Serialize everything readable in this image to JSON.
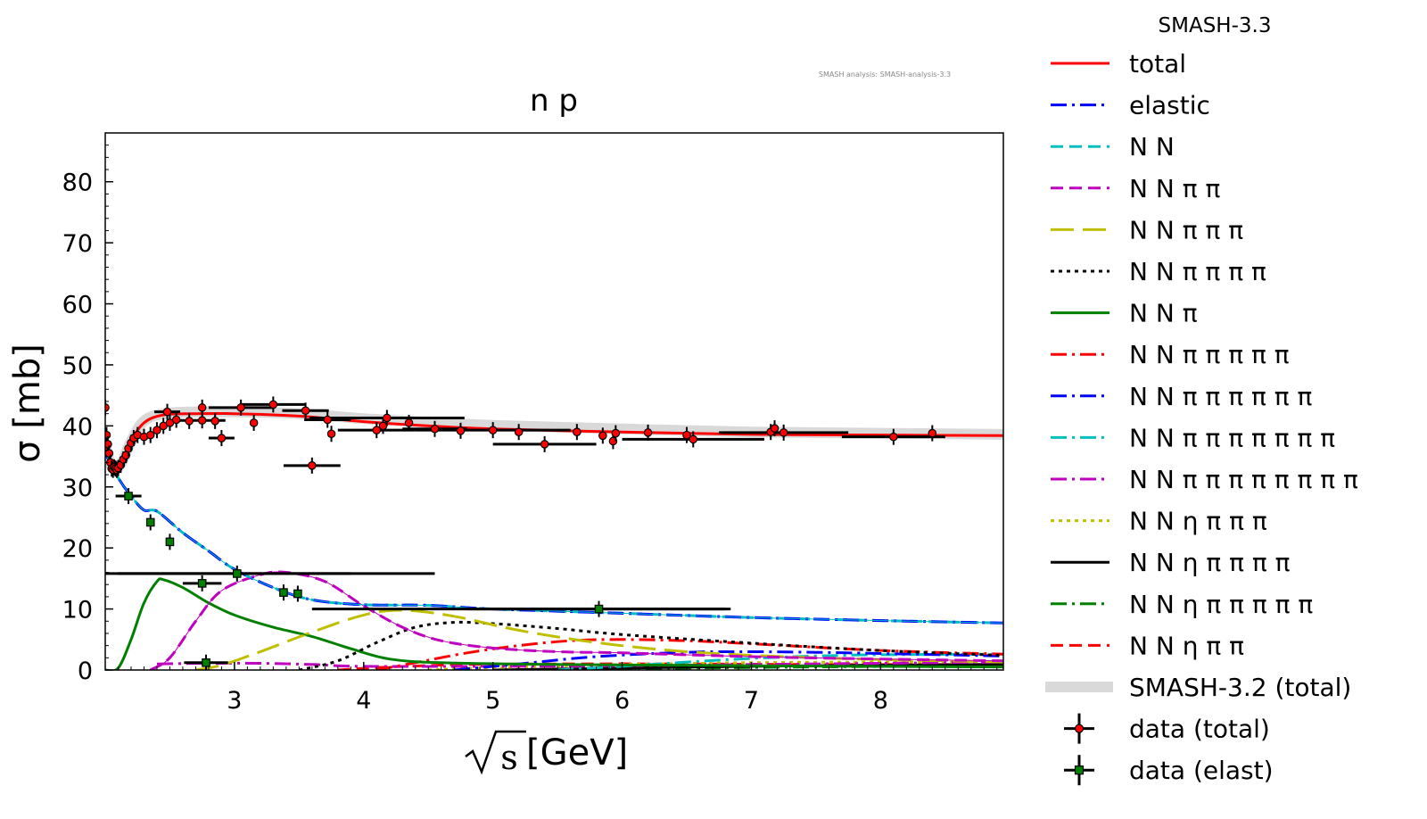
{
  "header": {
    "version_label": "SMASH-3.3",
    "analysis_note": "SMASH analysis: SMASH-analysis-3.3"
  },
  "chart_data": {
    "type": "line",
    "title": "n p",
    "xlabel": "[GeV]",
    "xlabel_symbol": "s",
    "ylabel": "σ [mb]",
    "xlim": [
      2.0,
      8.95
    ],
    "ylim": [
      0,
      88
    ],
    "x_ticks": [
      3,
      4,
      5,
      6,
      7,
      8
    ],
    "y_ticks": [
      0,
      10,
      20,
      30,
      40,
      50,
      60,
      70,
      80
    ],
    "grid": false,
    "legend_position": "outside-right",
    "series": [
      {
        "name": "total",
        "color": "#ff0000",
        "dash": "solid",
        "points": [
          [
            2.0,
            37
          ],
          [
            2.03,
            34.5
          ],
          [
            2.06,
            33
          ],
          [
            2.1,
            33.2
          ],
          [
            2.14,
            34.5
          ],
          [
            2.2,
            37.5
          ],
          [
            2.3,
            40.5
          ],
          [
            2.45,
            41.8
          ],
          [
            2.7,
            42
          ],
          [
            3.0,
            42
          ],
          [
            3.5,
            41.6
          ],
          [
            4.0,
            40.7
          ],
          [
            4.5,
            40
          ],
          [
            5.0,
            39.5
          ],
          [
            6.0,
            39
          ],
          [
            7.0,
            38.6
          ],
          [
            8.0,
            38.5
          ],
          [
            8.95,
            38.4
          ]
        ]
      },
      {
        "name": "elastic",
        "color": "#0000ff",
        "dash": "dashdot",
        "points": [
          [
            2.0,
            35.5
          ],
          [
            2.1,
            31.5
          ],
          [
            2.2,
            28.5
          ],
          [
            2.3,
            26.2
          ],
          [
            2.4,
            26
          ],
          [
            2.6,
            22.5
          ],
          [
            2.8,
            19.5
          ],
          [
            3.0,
            16.5
          ],
          [
            3.3,
            13.5
          ],
          [
            3.6,
            11.5
          ],
          [
            4.0,
            10.7
          ],
          [
            4.5,
            10.6
          ],
          [
            5.0,
            10
          ],
          [
            6.0,
            9.3
          ],
          [
            7.0,
            8.6
          ],
          [
            8.0,
            8.1
          ],
          [
            8.95,
            7.7
          ]
        ]
      },
      {
        "name": "N N",
        "color": "#00bfbf",
        "dash": "dashed",
        "points": [
          [
            2.0,
            35.5
          ],
          [
            2.1,
            31.5
          ],
          [
            2.2,
            28.5
          ],
          [
            2.3,
            26.2
          ],
          [
            2.4,
            26
          ],
          [
            2.6,
            22.5
          ],
          [
            2.8,
            19.5
          ],
          [
            3.0,
            16.5
          ],
          [
            3.3,
            13.5
          ],
          [
            3.6,
            11.5
          ],
          [
            4.0,
            10.7
          ],
          [
            4.5,
            10.6
          ],
          [
            5.0,
            10
          ],
          [
            6.0,
            9.3
          ],
          [
            7.0,
            8.6
          ],
          [
            8.0,
            8.1
          ],
          [
            8.95,
            7.7
          ]
        ]
      },
      {
        "name": "N N π π",
        "color": "#bf00bf",
        "dash": "dashed",
        "points": [
          [
            2.35,
            0
          ],
          [
            2.5,
            2
          ],
          [
            2.7,
            8
          ],
          [
            2.9,
            13
          ],
          [
            3.2,
            15.6
          ],
          [
            3.4,
            16
          ],
          [
            3.7,
            14.5
          ],
          [
            4.0,
            10.5
          ],
          [
            4.3,
            7
          ],
          [
            4.6,
            4.8
          ],
          [
            5.0,
            3.6
          ],
          [
            5.5,
            3
          ],
          [
            6.0,
            2.8
          ],
          [
            7.0,
            2.2
          ],
          [
            8.0,
            1.8
          ],
          [
            8.95,
            1.5
          ]
        ]
      },
      {
        "name": "N N π π π",
        "color": "#bfbf00",
        "dash": "longdash",
        "points": [
          [
            2.7,
            0
          ],
          [
            2.9,
            0.8
          ],
          [
            3.2,
            3
          ],
          [
            3.6,
            6.2
          ],
          [
            4.0,
            9
          ],
          [
            4.3,
            9.8
          ],
          [
            4.7,
            8.8
          ],
          [
            5.2,
            6.5
          ],
          [
            5.8,
            4.5
          ],
          [
            6.5,
            3
          ],
          [
            7.5,
            2
          ],
          [
            8.95,
            1.3
          ]
        ]
      },
      {
        "name": "N N π π π π",
        "color": "#000000",
        "dash": "dotted",
        "points": [
          [
            3.5,
            0
          ],
          [
            3.8,
            1.5
          ],
          [
            4.1,
            4.5
          ],
          [
            4.4,
            7
          ],
          [
            4.7,
            7.8
          ],
          [
            5.0,
            7.6
          ],
          [
            5.5,
            6.8
          ],
          [
            6.0,
            5.8
          ],
          [
            7.0,
            4.4
          ],
          [
            8.0,
            3.2
          ],
          [
            8.95,
            2.4
          ]
        ]
      },
      {
        "name": "N N π",
        "color": "#008000",
        "dash": "solid",
        "points": [
          [
            2.0,
            0
          ],
          [
            2.1,
            0.3
          ],
          [
            2.2,
            5
          ],
          [
            2.3,
            11
          ],
          [
            2.4,
            14.5
          ],
          [
            2.45,
            14.8
          ],
          [
            2.6,
            13.5
          ],
          [
            2.8,
            11
          ],
          [
            3.0,
            9
          ],
          [
            3.3,
            7
          ],
          [
            3.6,
            5.5
          ],
          [
            3.9,
            3.5
          ],
          [
            4.2,
            1.8
          ],
          [
            4.6,
            1.2
          ],
          [
            5.5,
            0.9
          ],
          [
            7.0,
            0.7
          ],
          [
            8.95,
            0.5
          ]
        ]
      },
      {
        "name": "N N π π π π π",
        "color": "#ff0000",
        "dash": "dashdot",
        "points": [
          [
            4.1,
            0
          ],
          [
            4.4,
            1.2
          ],
          [
            4.8,
            2.8
          ],
          [
            5.2,
            4
          ],
          [
            5.6,
            4.8
          ],
          [
            6.0,
            5
          ],
          [
            6.5,
            4.8
          ],
          [
            7.0,
            4.3
          ],
          [
            8.0,
            3.2
          ],
          [
            8.95,
            2.6
          ]
        ]
      },
      {
        "name": "N N π π π π π π",
        "color": "#0000ff",
        "dash": "dashdot",
        "points": [
          [
            4.7,
            0
          ],
          [
            5.2,
            1
          ],
          [
            5.8,
            2.2
          ],
          [
            6.5,
            2.9
          ],
          [
            7.0,
            3
          ],
          [
            7.5,
            2.9
          ],
          [
            8.0,
            2.7
          ],
          [
            8.95,
            2.3
          ]
        ]
      },
      {
        "name": "N N π π π π π π π",
        "color": "#00bfbf",
        "dash": "dashdot",
        "points": [
          [
            5.5,
            0
          ],
          [
            6.0,
            0.6
          ],
          [
            6.5,
            1.3
          ],
          [
            7.0,
            1.9
          ],
          [
            7.5,
            2.3
          ],
          [
            8.0,
            2.5
          ],
          [
            8.95,
            2.6
          ]
        ]
      },
      {
        "name": "N N π π π π π π π π",
        "color": "#bf00bf",
        "dash": "dashdot",
        "points": [
          [
            2.4,
            1
          ],
          [
            2.8,
            1.1
          ],
          [
            3.2,
            1.1
          ],
          [
            3.6,
            0.9
          ],
          [
            4.0,
            0.6
          ],
          [
            5.0,
            0.6
          ],
          [
            6.0,
            0.7
          ],
          [
            7.0,
            0.9
          ],
          [
            8.0,
            1.1
          ],
          [
            8.95,
            1.3
          ]
        ]
      },
      {
        "name": "N N η π π π",
        "color": "#bfbf00",
        "dash": "dotted",
        "points": [
          [
            4.5,
            0
          ],
          [
            5.0,
            0.4
          ],
          [
            6.0,
            0.9
          ],
          [
            7.0,
            1.2
          ],
          [
            8.0,
            1.3
          ],
          [
            8.95,
            1.4
          ]
        ]
      },
      {
        "name": "N N η π π π π",
        "color": "#000000",
        "dash": "solid",
        "points": [
          [
            5.0,
            0
          ],
          [
            6.0,
            0.3
          ],
          [
            7.0,
            0.6
          ],
          [
            8.0,
            0.8
          ],
          [
            8.95,
            0.9
          ]
        ]
      },
      {
        "name": "N N η π π π π π",
        "color": "#008000",
        "dash": "dashdot",
        "points": [
          [
            5.5,
            0
          ],
          [
            6.5,
            0.3
          ],
          [
            7.5,
            0.5
          ],
          [
            8.95,
            0.7
          ]
        ]
      },
      {
        "name": "N N η π π",
        "color": "#ff0000",
        "dash": "dashed",
        "points": [
          [
            3.8,
            0
          ],
          [
            4.2,
            0.5
          ],
          [
            4.8,
            0.9
          ],
          [
            5.5,
            1
          ],
          [
            6.5,
            1
          ],
          [
            7.5,
            0.9
          ],
          [
            8.95,
            0.9
          ]
        ]
      },
      {
        "name": "SMASH-3.2 (total)",
        "color": "#d9d9d9",
        "dash": "band",
        "points": [
          [
            2.0,
            37
          ],
          [
            2.03,
            34.5
          ],
          [
            2.06,
            33
          ],
          [
            2.1,
            33.2
          ],
          [
            2.14,
            34.5
          ],
          [
            2.2,
            37.5
          ],
          [
            2.3,
            40.8
          ],
          [
            2.45,
            42
          ],
          [
            2.7,
            42.3
          ],
          [
            3.0,
            42.3
          ],
          [
            3.5,
            42
          ],
          [
            4.0,
            41.2
          ],
          [
            4.5,
            40.6
          ],
          [
            5.0,
            40.1
          ],
          [
            6.0,
            39.5
          ],
          [
            7.0,
            39
          ],
          [
            8.0,
            38.8
          ],
          [
            8.95,
            38.6
          ]
        ]
      }
    ],
    "data_total": {
      "name": "data (total)",
      "points": [
        [
          2.0,
          43
        ],
        [
          2.01,
          38.5
        ],
        [
          2.02,
          37
        ],
        [
          2.03,
          35.5
        ],
        [
          2.04,
          34
        ],
        [
          2.05,
          33
        ],
        [
          2.06,
          32.8
        ],
        [
          2.07,
          33.2
        ],
        [
          2.08,
          33
        ],
        [
          2.09,
          32.8
        ],
        [
          2.1,
          33.1
        ],
        [
          2.12,
          33.6
        ],
        [
          2.14,
          34.5
        ],
        [
          2.16,
          35.2
        ],
        [
          2.18,
          36.3
        ],
        [
          2.2,
          37.2
        ],
        [
          2.22,
          38
        ],
        [
          2.25,
          38.5
        ],
        [
          2.3,
          38.2
        ],
        [
          2.35,
          38.5
        ],
        [
          2.4,
          39.3
        ],
        [
          2.45,
          40
        ],
        [
          2.5,
          40.5
        ],
        [
          2.55,
          41
        ],
        [
          2.65,
          40.8
        ],
        [
          2.75,
          40.9
        ],
        [
          2.85,
          40.8
        ],
        [
          2.48,
          42.3
        ],
        [
          2.75,
          43
        ],
        [
          2.9,
          38
        ],
        [
          3.05,
          43
        ],
        [
          3.15,
          40.5
        ],
        [
          3.3,
          43.5
        ],
        [
          3.55,
          42.5
        ],
        [
          3.6,
          33.5
        ],
        [
          3.72,
          41
        ],
        [
          3.75,
          38.7
        ],
        [
          4.1,
          39.3
        ],
        [
          4.15,
          40
        ],
        [
          4.18,
          41.3
        ],
        [
          4.35,
          40.5
        ],
        [
          4.55,
          39.5
        ],
        [
          4.75,
          39.2
        ],
        [
          5.0,
          39.3
        ],
        [
          5.2,
          39
        ],
        [
          5.4,
          37
        ],
        [
          5.65,
          39
        ],
        [
          5.85,
          38.4
        ],
        [
          5.93,
          37.5
        ],
        [
          5.95,
          38.8
        ],
        [
          6.2,
          38.9
        ],
        [
          6.5,
          38.5
        ],
        [
          6.55,
          37.8
        ],
        [
          7.15,
          39
        ],
        [
          7.18,
          39.6
        ],
        [
          7.25,
          38.9
        ],
        [
          8.1,
          38.2
        ],
        [
          8.4,
          38.8
        ]
      ],
      "x_errors": [
        [
          2.48,
          0.1
        ],
        [
          2.75,
          0.18
        ],
        [
          2.9,
          0.1
        ],
        [
          3.05,
          0.25
        ],
        [
          3.3,
          0.25
        ],
        [
          3.55,
          0.18
        ],
        [
          3.6,
          0.22
        ],
        [
          3.72,
          0.18
        ],
        [
          4.1,
          0.3
        ],
        [
          4.18,
          0.6
        ],
        [
          4.55,
          0.25
        ],
        [
          5.0,
          0.6
        ],
        [
          5.4,
          0.4
        ],
        [
          6.55,
          0.55
        ],
        [
          7.25,
          0.5
        ],
        [
          8.1,
          0.4
        ]
      ]
    },
    "data_elast": {
      "name": "data (elast)",
      "points": [
        [
          2.18,
          28.5
        ],
        [
          2.35,
          24.2
        ],
        [
          2.5,
          21
        ],
        [
          2.75,
          14.2
        ],
        [
          3.02,
          15.8
        ],
        [
          3.38,
          12.7
        ],
        [
          3.49,
          12.5
        ],
        [
          2.78,
          1.2
        ],
        [
          5.82,
          10
        ]
      ],
      "x_errors": [
        [
          2.18,
          0.1
        ],
        [
          2.75,
          0.15
        ],
        [
          3.0,
          0.9
        ],
        [
          3.1,
          1.45
        ],
        [
          2.78,
          0.17
        ],
        [
          5.82,
          1.02
        ],
        [
          5.2,
          1.6
        ]
      ]
    }
  }
}
